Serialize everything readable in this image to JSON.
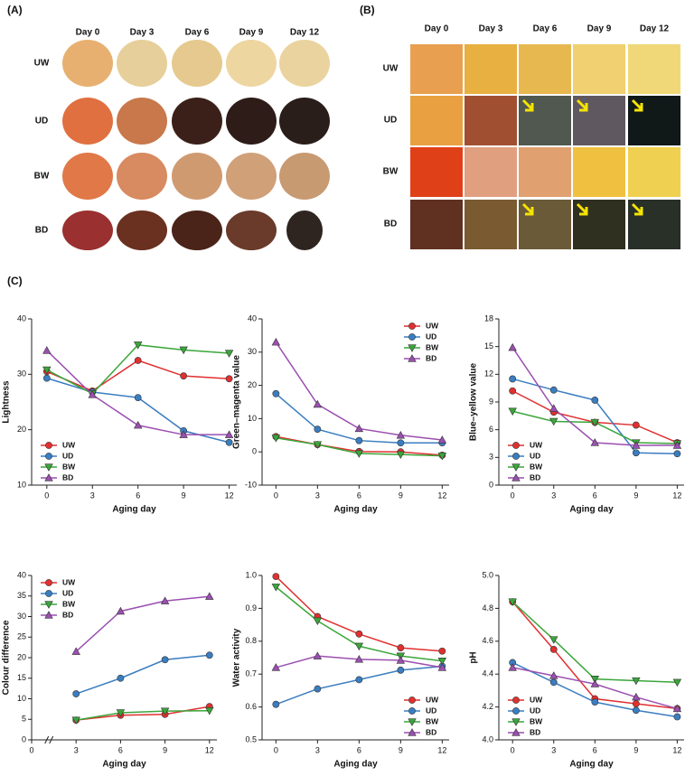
{
  "panel_a": {
    "label": "(A)",
    "columns": [
      "Day 0",
      "Day 3",
      "Day 6",
      "Day 9",
      "Day 12"
    ],
    "rows": [
      "UW",
      "UD",
      "BW",
      "BD"
    ]
  },
  "panel_b": {
    "label": "(B)",
    "columns": [
      "Day 0",
      "Day 3",
      "Day 6",
      "Day 9",
      "Day 12"
    ],
    "rows": [
      "UW",
      "UD",
      "BW",
      "BD"
    ]
  },
  "panel_c": {
    "label": "(C)"
  },
  "chart_data": [
    {
      "type": "line",
      "y_label": "Lightness",
      "x_label": "Aging day",
      "x": [
        0,
        3,
        6,
        9,
        12
      ],
      "xlim": [
        -1,
        12.5
      ],
      "xticks": [
        0,
        3,
        6,
        9,
        12
      ],
      "ylim": [
        10,
        40
      ],
      "yticks": [
        10,
        20,
        30,
        40
      ],
      "legend": "lower left",
      "series": [
        {
          "name": "UW",
          "color": "#e03030",
          "marker": "circle",
          "values": [
            30.5,
            27.0,
            32.5,
            29.7,
            29.2
          ]
        },
        {
          "name": "UD",
          "color": "#3a7dc0",
          "marker": "circle",
          "values": [
            29.3,
            26.8,
            25.8,
            19.8,
            17.7
          ]
        },
        {
          "name": "BW",
          "color": "#3aa63a",
          "marker": "triangle-down",
          "values": [
            30.8,
            26.5,
            35.3,
            34.4,
            33.8
          ]
        },
        {
          "name": "BD",
          "color": "#9b4fb0",
          "marker": "triangle-up",
          "values": [
            34.3,
            26.3,
            20.8,
            19.1,
            19.1
          ]
        }
      ]
    },
    {
      "type": "line",
      "y_label": "Green–magenta value",
      "x_label": "Aging day",
      "x": [
        0,
        3,
        6,
        9,
        12
      ],
      "xlim": [
        -1,
        12.5
      ],
      "xticks": [
        0,
        3,
        6,
        9,
        12
      ],
      "ylim": [
        -10,
        40
      ],
      "yticks": [
        -10,
        0,
        10,
        20,
        30,
        40
      ],
      "legend": "upper right",
      "series": [
        {
          "name": "UW",
          "color": "#e03030",
          "marker": "circle",
          "values": [
            4.6,
            2.2,
            0.1,
            0.0,
            -1.0
          ]
        },
        {
          "name": "UD",
          "color": "#3a7dc0",
          "marker": "circle",
          "values": [
            17.5,
            6.8,
            3.4,
            2.7,
            2.7
          ]
        },
        {
          "name": "BW",
          "color": "#3aa63a",
          "marker": "triangle-down",
          "values": [
            4.2,
            2.2,
            -0.5,
            -0.8,
            -1.2
          ]
        },
        {
          "name": "BD",
          "color": "#9b4fb0",
          "marker": "triangle-up",
          "values": [
            33.0,
            14.3,
            7.0,
            5.0,
            3.6
          ]
        }
      ]
    },
    {
      "type": "line",
      "y_label": "Blue–yellow value",
      "x_label": "Aging day",
      "x": [
        0,
        3,
        6,
        9,
        12
      ],
      "xlim": [
        -1,
        12.5
      ],
      "xticks": [
        0,
        3,
        6,
        9,
        12
      ],
      "ylim": [
        0,
        18
      ],
      "yticks": [
        0,
        3,
        6,
        9,
        12,
        15,
        18
      ],
      "legend": "lower left",
      "series": [
        {
          "name": "UW",
          "color": "#e03030",
          "marker": "circle",
          "values": [
            10.2,
            7.9,
            6.8,
            6.5,
            4.6
          ]
        },
        {
          "name": "UD",
          "color": "#3a7dc0",
          "marker": "circle",
          "values": [
            11.5,
            10.3,
            9.2,
            3.5,
            3.4
          ]
        },
        {
          "name": "BW",
          "color": "#3aa63a",
          "marker": "triangle-down",
          "values": [
            8.0,
            6.9,
            6.8,
            4.6,
            4.5
          ]
        },
        {
          "name": "BD",
          "color": "#9b4fb0",
          "marker": "triangle-up",
          "values": [
            14.9,
            8.3,
            4.6,
            4.3,
            4.3
          ]
        }
      ]
    },
    {
      "type": "line",
      "y_label": "Colour difference",
      "x_label": "Aging day",
      "x": [
        3,
        6,
        9,
        12
      ],
      "xlim": [
        0,
        12.5
      ],
      "xticks": [
        0,
        3,
        6,
        9,
        12
      ],
      "ylim": [
        0,
        40
      ],
      "yticks": [
        0,
        5,
        10,
        15,
        20,
        25,
        30,
        35,
        40
      ],
      "legend": "upper left",
      "axis_break": true,
      "series": [
        {
          "name": "UW",
          "color": "#e03030",
          "marker": "circle",
          "values": [
            4.8,
            6.0,
            6.2,
            8.1
          ]
        },
        {
          "name": "UD",
          "color": "#3a7dc0",
          "marker": "circle",
          "values": [
            11.2,
            15.0,
            19.5,
            20.6
          ]
        },
        {
          "name": "BW",
          "color": "#3aa63a",
          "marker": "triangle-down",
          "values": [
            4.8,
            6.6,
            7.0,
            7.1
          ]
        },
        {
          "name": "BD",
          "color": "#9b4fb0",
          "marker": "triangle-up",
          "values": [
            21.5,
            31.3,
            33.8,
            34.9
          ]
        }
      ]
    },
    {
      "type": "line",
      "y_label": "Water activity",
      "x_label": "Aging day",
      "x": [
        0,
        3,
        6,
        9,
        12
      ],
      "xlim": [
        -1,
        12.5
      ],
      "xticks": [
        0,
        3,
        6,
        9,
        12
      ],
      "ylim": [
        0.5,
        1
      ],
      "yticks": [
        0.5,
        0.6,
        0.7,
        0.8,
        0.9,
        {
          "value": 1,
          "label": "1.0"
        }
      ],
      "legend": "lower right",
      "series": [
        {
          "name": "UW",
          "color": "#e03030",
          "marker": "circle",
          "values": [
            0.997,
            0.875,
            0.822,
            0.78,
            0.77
          ]
        },
        {
          "name": "UD",
          "color": "#3a7dc0",
          "marker": "circle",
          "values": [
            0.608,
            0.655,
            0.683,
            0.712,
            0.724
          ]
        },
        {
          "name": "BW",
          "color": "#3aa63a",
          "marker": "triangle-down",
          "values": [
            0.965,
            0.862,
            0.785,
            0.755,
            0.74
          ]
        },
        {
          "name": "BD",
          "color": "#9b4fb0",
          "marker": "triangle-up",
          "values": [
            0.72,
            0.755,
            0.745,
            0.742,
            0.72
          ]
        }
      ]
    },
    {
      "type": "line",
      "y_label": "pH",
      "x_label": "Aging day",
      "x": [
        0,
        3,
        6,
        9,
        12
      ],
      "xlim": [
        -1,
        12.5
      ],
      "xticks": [
        0,
        3,
        6,
        9,
        12
      ],
      "ylim": [
        4,
        5
      ],
      "yticks": [
        {
          "value": 4,
          "label": "4.0"
        },
        4.2,
        4.4,
        4.6,
        4.8,
        {
          "value": 5,
          "label": "5.0"
        }
      ],
      "legend": "lower left",
      "series": [
        {
          "name": "UW",
          "color": "#e03030",
          "marker": "circle",
          "values": [
            4.84,
            4.55,
            4.25,
            4.22,
            4.19
          ]
        },
        {
          "name": "UD",
          "color": "#3a7dc0",
          "marker": "circle",
          "values": [
            4.47,
            4.35,
            4.23,
            4.18,
            4.14
          ]
        },
        {
          "name": "BW",
          "color": "#3aa63a",
          "marker": "triangle-down",
          "values": [
            4.84,
            4.61,
            4.37,
            4.36,
            4.35
          ]
        },
        {
          "name": "BD",
          "color": "#9b4fb0",
          "marker": "triangle-up",
          "values": [
            4.44,
            4.39,
            4.34,
            4.26,
            4.19
          ]
        }
      ]
    }
  ]
}
